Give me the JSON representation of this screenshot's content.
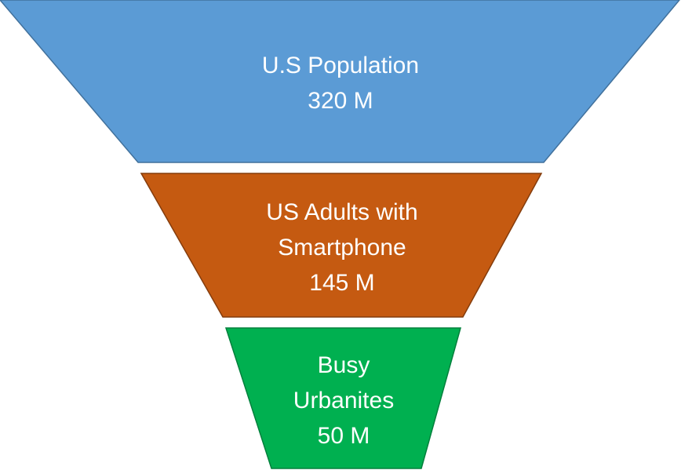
{
  "diagram": {
    "type": "funnel",
    "stages": [
      {
        "lines": [
          "U.S Population",
          "320 M"
        ],
        "value": 320,
        "unit": "M",
        "color": "#5b9bd5"
      },
      {
        "lines": [
          "US Adults with",
          "Smartphone",
          "145 M"
        ],
        "value": 145,
        "unit": "M",
        "color": "#c55a11"
      },
      {
        "lines": [
          "Busy",
          "Urbanites",
          "50 M"
        ],
        "value": 50,
        "unit": "M",
        "color": "#00b050"
      }
    ]
  }
}
